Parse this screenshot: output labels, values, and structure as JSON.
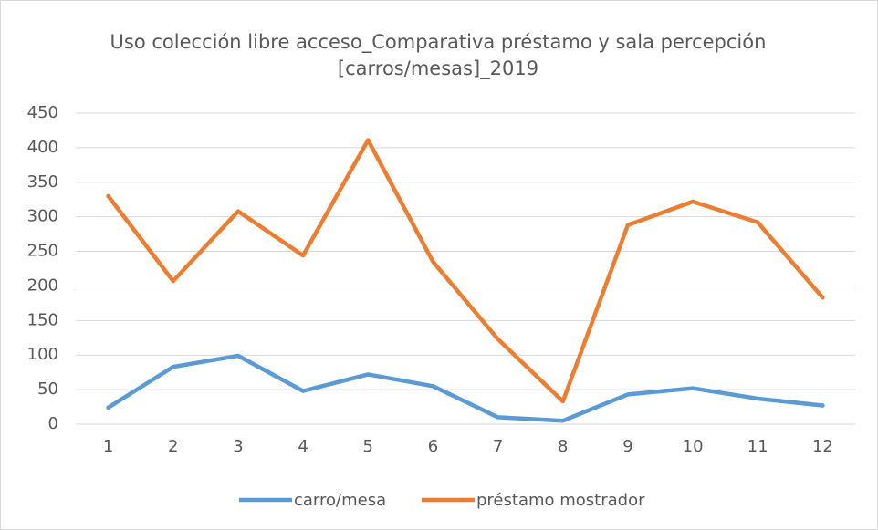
{
  "chart_data": {
    "type": "line",
    "title": [
      "Uso colección libre acceso_Comparativa préstamo y sala percepción",
      "[carros/mesas]_2019"
    ],
    "categories": [
      "1",
      "2",
      "3",
      "4",
      "5",
      "6",
      "7",
      "8",
      "9",
      "10",
      "11",
      "12"
    ],
    "series": [
      {
        "name": "carro/mesa",
        "color": "#5b9bd5",
        "values": [
          24,
          83,
          99,
          48,
          72,
          55,
          10,
          5,
          43,
          52,
          37,
          27
        ]
      },
      {
        "name": "préstamo mostrador",
        "color": "#ed7d31",
        "values": [
          330,
          207,
          308,
          244,
          411,
          235,
          123,
          33,
          288,
          322,
          292,
          183
        ]
      }
    ],
    "ylim": [
      0,
      450
    ],
    "yticks": [
      0,
      50,
      100,
      150,
      200,
      250,
      300,
      350,
      400,
      450
    ],
    "grid": true,
    "legend": "bottom"
  }
}
